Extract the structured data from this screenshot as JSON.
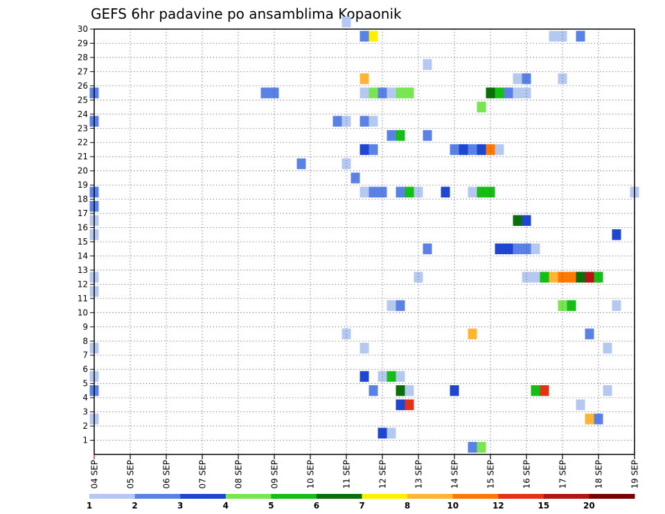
{
  "chart_data": {
    "type": "heatmap",
    "title": "GEFS 6hr padavine po ansamblima Kopaonik",
    "x_tick_labels": [
      "04 SEP",
      "05 SEP",
      "06 SEP",
      "07 SEP",
      "08 SEP",
      "09 SEP",
      "10 SEP",
      "11 SEP",
      "12 SEP",
      "13 SEP",
      "14 SEP",
      "15 SEP",
      "16 SEP",
      "17 SEP",
      "18 SEP",
      "19 SEP"
    ],
    "y_tick_labels": [
      "1",
      "2",
      "3",
      "4",
      "5",
      "6",
      "7",
      "8",
      "9",
      "10",
      "11",
      "12",
      "13",
      "14",
      "15",
      "16",
      "17",
      "18",
      "19",
      "20",
      "21",
      "22",
      "23",
      "24",
      "25",
      "26",
      "27",
      "28",
      "29",
      "30"
    ],
    "x_unit": "6-hour steps since 04 SEP",
    "xlim": [
      0,
      60
    ],
    "ylim": [
      0,
      30
    ],
    "grid": true,
    "colorbar": {
      "labels": [
        "1",
        "2",
        "3",
        "4",
        "5",
        "6",
        "7",
        "8",
        "10",
        "12",
        "15",
        "20"
      ],
      "colors": [
        "#b4c8f0",
        "#5a82e6",
        "#1e46d2",
        "#78e650",
        "#14be14",
        "#0a6e0a",
        "#fff000",
        "#ffb432",
        "#ff7800",
        "#e63214",
        "#b41414",
        "#780000"
      ]
    },
    "cells": [
      {
        "x": 28,
        "member": 30,
        "level": 1
      },
      {
        "x": 30,
        "member": 29,
        "level": 2
      },
      {
        "x": 31,
        "member": 29,
        "level": 7
      },
      {
        "x": 51,
        "member": 29,
        "level": 1
      },
      {
        "x": 52,
        "member": 29,
        "level": 1
      },
      {
        "x": 54,
        "member": 29,
        "level": 2
      },
      {
        "x": 37,
        "member": 27,
        "level": 1
      },
      {
        "x": 30,
        "member": 26,
        "level": 8
      },
      {
        "x": 47,
        "member": 26,
        "level": 1
      },
      {
        "x": 48,
        "member": 26,
        "level": 2
      },
      {
        "x": 52,
        "member": 26,
        "level": 1
      },
      {
        "x": 0,
        "member": 25,
        "level": 2
      },
      {
        "x": 19,
        "member": 25,
        "level": 2
      },
      {
        "x": 20,
        "member": 25,
        "level": 2
      },
      {
        "x": 30,
        "member": 25,
        "level": 1
      },
      {
        "x": 31,
        "member": 25,
        "level": 4
      },
      {
        "x": 32,
        "member": 25,
        "level": 2
      },
      {
        "x": 33,
        "member": 25,
        "level": 1
      },
      {
        "x": 34,
        "member": 25,
        "level": 4
      },
      {
        "x": 35,
        "member": 25,
        "level": 4
      },
      {
        "x": 44,
        "member": 25,
        "level": 6
      },
      {
        "x": 45,
        "member": 25,
        "level": 5
      },
      {
        "x": 46,
        "member": 25,
        "level": 2
      },
      {
        "x": 47,
        "member": 25,
        "level": 1
      },
      {
        "x": 48,
        "member": 25,
        "level": 1
      },
      {
        "x": 43,
        "member": 24,
        "level": 4
      },
      {
        "x": 0,
        "member": 23,
        "level": 2
      },
      {
        "x": 27,
        "member": 23,
        "level": 2
      },
      {
        "x": 28,
        "member": 23,
        "level": 1
      },
      {
        "x": 30,
        "member": 23,
        "level": 2
      },
      {
        "x": 31,
        "member": 23,
        "level": 1
      },
      {
        "x": 33,
        "member": 22,
        "level": 2
      },
      {
        "x": 34,
        "member": 22,
        "level": 5
      },
      {
        "x": 37,
        "member": 22,
        "level": 2
      },
      {
        "x": 30,
        "member": 21,
        "level": 3
      },
      {
        "x": 31,
        "member": 21,
        "level": 2
      },
      {
        "x": 40,
        "member": 21,
        "level": 2
      },
      {
        "x": 41,
        "member": 21,
        "level": 3
      },
      {
        "x": 42,
        "member": 21,
        "level": 2
      },
      {
        "x": 43,
        "member": 21,
        "level": 3
      },
      {
        "x": 44,
        "member": 21,
        "level": 9
      },
      {
        "x": 45,
        "member": 21,
        "level": 1
      },
      {
        "x": 23,
        "member": 20,
        "level": 2
      },
      {
        "x": 28,
        "member": 20,
        "level": 1
      },
      {
        "x": 29,
        "member": 19,
        "level": 2
      },
      {
        "x": 0,
        "member": 18,
        "level": 2
      },
      {
        "x": 30,
        "member": 18,
        "level": 1
      },
      {
        "x": 31,
        "member": 18,
        "level": 2
      },
      {
        "x": 32,
        "member": 18,
        "level": 2
      },
      {
        "x": 34,
        "member": 18,
        "level": 2
      },
      {
        "x": 35,
        "member": 18,
        "level": 5
      },
      {
        "x": 36,
        "member": 18,
        "level": 1
      },
      {
        "x": 39,
        "member": 18,
        "level": 3
      },
      {
        "x": 42,
        "member": 18,
        "level": 1
      },
      {
        "x": 43,
        "member": 18,
        "level": 5
      },
      {
        "x": 44,
        "member": 18,
        "level": 5
      },
      {
        "x": 60,
        "member": 18,
        "level": 1
      },
      {
        "x": 0,
        "member": 17,
        "level": 2
      },
      {
        "x": 0,
        "member": 16,
        "level": 1
      },
      {
        "x": 47,
        "member": 16,
        "level": 6
      },
      {
        "x": 48,
        "member": 16,
        "level": 3
      },
      {
        "x": 0,
        "member": 15,
        "level": 1
      },
      {
        "x": 58,
        "member": 15,
        "level": 3
      },
      {
        "x": 37,
        "member": 14,
        "level": 2
      },
      {
        "x": 45,
        "member": 14,
        "level": 3
      },
      {
        "x": 46,
        "member": 14,
        "level": 3
      },
      {
        "x": 47,
        "member": 14,
        "level": 2
      },
      {
        "x": 48,
        "member": 14,
        "level": 2
      },
      {
        "x": 49,
        "member": 14,
        "level": 1
      },
      {
        "x": 0,
        "member": 12,
        "level": 1
      },
      {
        "x": 36,
        "member": 12,
        "level": 1
      },
      {
        "x": 48,
        "member": 12,
        "level": 1
      },
      {
        "x": 49,
        "member": 12,
        "level": 1
      },
      {
        "x": 50,
        "member": 12,
        "level": 5
      },
      {
        "x": 51,
        "member": 12,
        "level": 8
      },
      {
        "x": 52,
        "member": 12,
        "level": 9
      },
      {
        "x": 53,
        "member": 12,
        "level": 9
      },
      {
        "x": 54,
        "member": 12,
        "level": 6
      },
      {
        "x": 55,
        "member": 12,
        "level": 11
      },
      {
        "x": 56,
        "member": 12,
        "level": 5
      },
      {
        "x": 0,
        "member": 11,
        "level": 1
      },
      {
        "x": 33,
        "member": 10,
        "level": 1
      },
      {
        "x": 34,
        "member": 10,
        "level": 2
      },
      {
        "x": 52,
        "member": 10,
        "level": 4
      },
      {
        "x": 53,
        "member": 10,
        "level": 5
      },
      {
        "x": 58,
        "member": 10,
        "level": 1
      },
      {
        "x": 28,
        "member": 8,
        "level": 1
      },
      {
        "x": 42,
        "member": 8,
        "level": 8
      },
      {
        "x": 55,
        "member": 8,
        "level": 2
      },
      {
        "x": 0,
        "member": 7,
        "level": 1
      },
      {
        "x": 30,
        "member": 7,
        "level": 1
      },
      {
        "x": 57,
        "member": 7,
        "level": 1
      },
      {
        "x": 0,
        "member": 5,
        "level": 1
      },
      {
        "x": 30,
        "member": 5,
        "level": 3
      },
      {
        "x": 32,
        "member": 5,
        "level": 1
      },
      {
        "x": 33,
        "member": 5,
        "level": 5
      },
      {
        "x": 34,
        "member": 5,
        "level": 1
      },
      {
        "x": 0,
        "member": 4,
        "level": 2
      },
      {
        "x": 31,
        "member": 4,
        "level": 2
      },
      {
        "x": 34,
        "member": 4,
        "level": 6
      },
      {
        "x": 35,
        "member": 4,
        "level": 1
      },
      {
        "x": 40,
        "member": 4,
        "level": 3
      },
      {
        "x": 49,
        "member": 4,
        "level": 5
      },
      {
        "x": 50,
        "member": 4,
        "level": 10
      },
      {
        "x": 57,
        "member": 4,
        "level": 1
      },
      {
        "x": 34,
        "member": 3,
        "level": 3
      },
      {
        "x": 35,
        "member": 3,
        "level": 10
      },
      {
        "x": 54,
        "member": 3,
        "level": 1
      },
      {
        "x": 0,
        "member": 2,
        "level": 1
      },
      {
        "x": 55,
        "member": 2,
        "level": 8
      },
      {
        "x": 56,
        "member": 2,
        "level": 2
      },
      {
        "x": 32,
        "member": 1,
        "level": 3
      },
      {
        "x": 33,
        "member": 1,
        "level": 1
      },
      {
        "x": 42,
        "member": 0,
        "level": 2
      },
      {
        "x": 43,
        "member": 0,
        "level": 4
      }
    ]
  }
}
